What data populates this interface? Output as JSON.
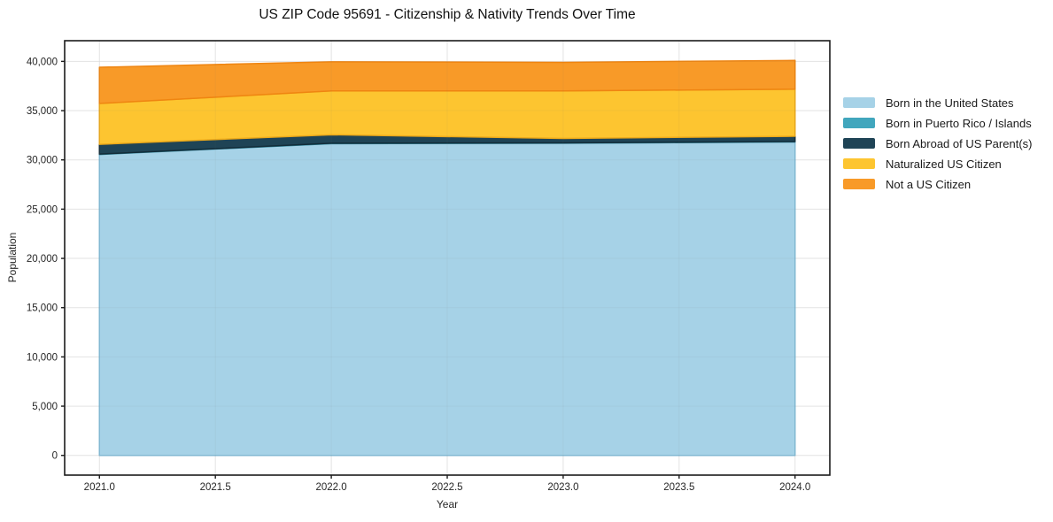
{
  "chart_data": {
    "type": "area",
    "stacked": true,
    "title": "US ZIP Code 95691 - Citizenship & Nativity Trends Over Time",
    "xlabel": "Year",
    "ylabel": "Population",
    "x": [
      2021,
      2022,
      2023,
      2024
    ],
    "series": [
      {
        "name": "Born in the United States",
        "color": "#a6d2e7",
        "edge_color": "#84bdd8",
        "values": [
          30550,
          31650,
          31690,
          31820
        ]
      },
      {
        "name": "Born in Puerto Rico / Islands",
        "color": "#41a6bd",
        "edge_color": "#31869a",
        "values": [
          40,
          40,
          40,
          40
        ]
      },
      {
        "name": "Born Abroad of US Parent(s)",
        "color": "#1f4456",
        "edge_color": "#132d3a",
        "values": [
          990,
          860,
          450,
          540
        ]
      },
      {
        "name": "Naturalized US Citizen",
        "color": "#fdc530",
        "edge_color": "#edaa1a",
        "values": [
          4150,
          4450,
          4820,
          4780
        ]
      },
      {
        "name": "Not a US Citizen",
        "color": "#f89a28",
        "edge_color": "#ef8511",
        "values": [
          3670,
          2960,
          2900,
          2920
        ]
      }
    ],
    "totals": [
      39400,
      39960,
      39900,
      40100
    ],
    "xlim": [
      2020.85,
      2024.15
    ],
    "ylim": [
      -2000,
      42100
    ],
    "x_ticks": [
      2021.0,
      2021.5,
      2022.0,
      2022.5,
      2023.0,
      2023.5,
      2024.0
    ],
    "x_tick_labels": [
      "2021.0",
      "2021.5",
      "2022.0",
      "2022.5",
      "2023.0",
      "2023.5",
      "2024.0"
    ],
    "y_ticks": [
      0,
      5000,
      10000,
      15000,
      20000,
      25000,
      30000,
      35000,
      40000
    ],
    "y_tick_labels": [
      "0",
      "5,000",
      "10,000",
      "15,000",
      "20,000",
      "25,000",
      "30,000",
      "35,000",
      "40,000"
    ],
    "grid": true,
    "legend_position": "right",
    "frame_color": "#1b1b1b",
    "grid_color": "#ececec"
  }
}
